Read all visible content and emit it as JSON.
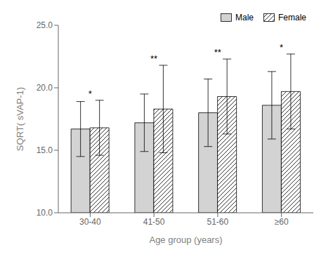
{
  "chart_data": {
    "type": "bar",
    "categories": [
      "30-40",
      "41-50",
      "51-60",
      "≥60"
    ],
    "series": [
      {
        "name": "Male",
        "color": "#d3d3d3",
        "values": [
          16.7,
          17.2,
          18.0,
          18.6
        ],
        "errors": [
          2.2,
          2.3,
          2.7,
          2.7
        ]
      },
      {
        "name": "Female",
        "color": "#ffffff",
        "values": [
          16.8,
          18.3,
          19.3,
          19.7
        ],
        "errors": [
          2.2,
          3.5,
          3.0,
          3.0
        ]
      }
    ],
    "annotations": [
      "*",
      "**",
      "**",
      "*"
    ],
    "xlabel": "Age group (years)",
    "ylabel": "SQRT( sVAP-1)",
    "ylim": [
      10.0,
      25.0
    ],
    "yticks": [
      {
        "value": 10.0,
        "label": "10.0"
      },
      {
        "value": 15.0,
        "label": "15.0"
      },
      {
        "value": 20.0,
        "label": "20.0"
      },
      {
        "value": 25.0,
        "label": "25.0"
      }
    ],
    "legend": "upper right",
    "grid": false
  }
}
